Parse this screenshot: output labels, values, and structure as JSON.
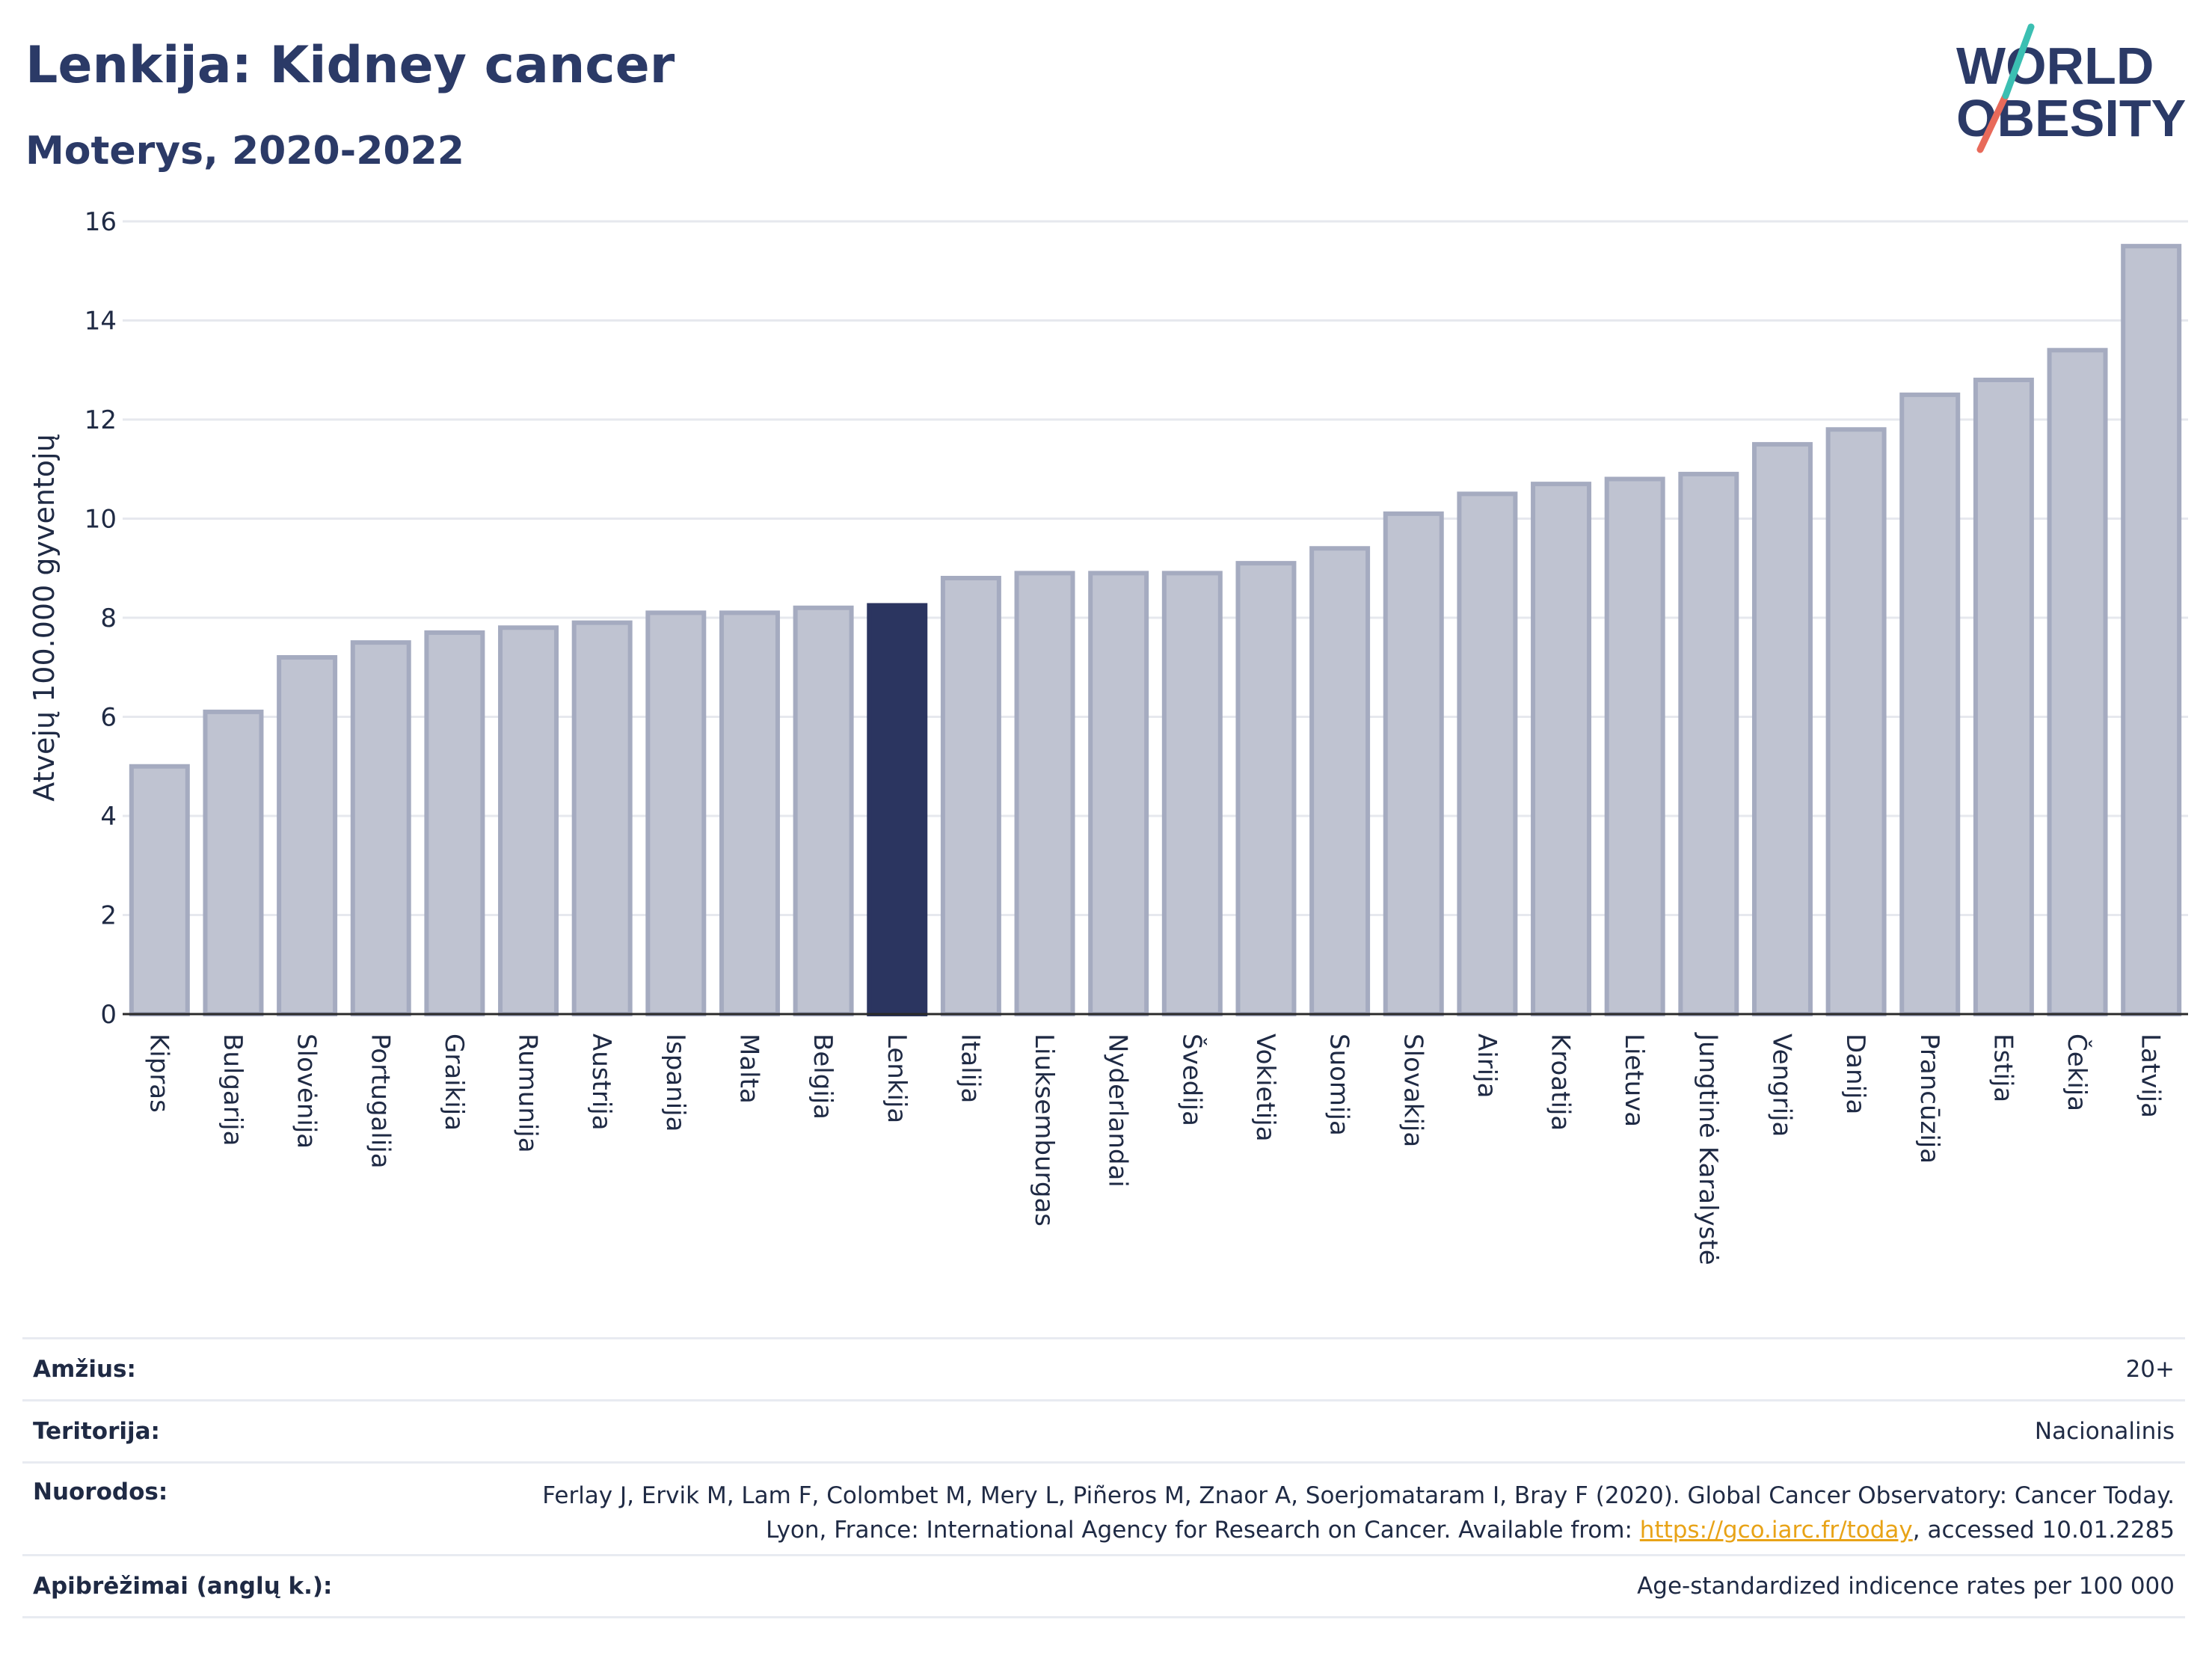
{
  "title": "Lenkija: Kidney cancer",
  "subtitle": "Moterys, 2020-2022",
  "logo": {
    "line1": "WORLD",
    "line2": "OBESITY"
  },
  "colors": {
    "bar": "#bfc3d1",
    "bar_stroke": "#a5abc0",
    "highlight": "#2b3560",
    "title": "#2b3a67",
    "grid": "#e6e8ee",
    "link": "#e8a317"
  },
  "chart_data": {
    "type": "bar",
    "ylabel": "Atvejų 100.000 gyventojų",
    "ylim": [
      0,
      16
    ],
    "yticks": [
      0,
      2,
      4,
      6,
      8,
      10,
      12,
      14,
      16
    ],
    "grid": true,
    "highlight": "Lenkija",
    "categories": [
      "Kipras",
      "Bulgarija",
      "Slovėnija",
      "Portugalija",
      "Graikija",
      "Rumunija",
      "Austrija",
      "Ispanija",
      "Malta",
      "Belgija",
      "Lenkija",
      "Italija",
      "Liuksemburgas",
      "Nyderlandai",
      "Švedija",
      "Vokietija",
      "Suomija",
      "Slovakija",
      "Airija",
      "Kroatija",
      "Lietuva",
      "Jungtinė Karalystė",
      "Vengrija",
      "Danija",
      "Prancūzija",
      "Estija",
      "Čekija",
      "Latvija"
    ],
    "values": [
      5.0,
      6.1,
      7.2,
      7.5,
      7.7,
      7.8,
      7.9,
      8.1,
      8.1,
      8.2,
      8.25,
      8.8,
      8.9,
      8.9,
      8.9,
      9.1,
      9.4,
      10.1,
      10.5,
      10.7,
      10.8,
      10.9,
      11.5,
      11.8,
      12.5,
      12.8,
      13.4,
      15.5
    ]
  },
  "info": {
    "age_label": "Amžius:",
    "age_value": "20+",
    "territory_label": "Teritorija:",
    "territory_value": "Nacionalinis",
    "refs_label": "Nuorodos:",
    "refs_text1": "Ferlay J, Ervik M, Lam F, Colombet M, Mery L, Piñeros M, Znaor A, Soerjomataram I, Bray F (2020). Global Cancer Observatory: Cancer Today. Lyon, France: International Agency for Research on Cancer. Available from: ",
    "refs_link": "https://gco.iarc.fr/today",
    "refs_text2": ", accessed 10.01.2285",
    "defs_label": "Apibrėžimai (anglų k.):",
    "defs_value": "Age-standardized indicence rates per 100 000"
  }
}
